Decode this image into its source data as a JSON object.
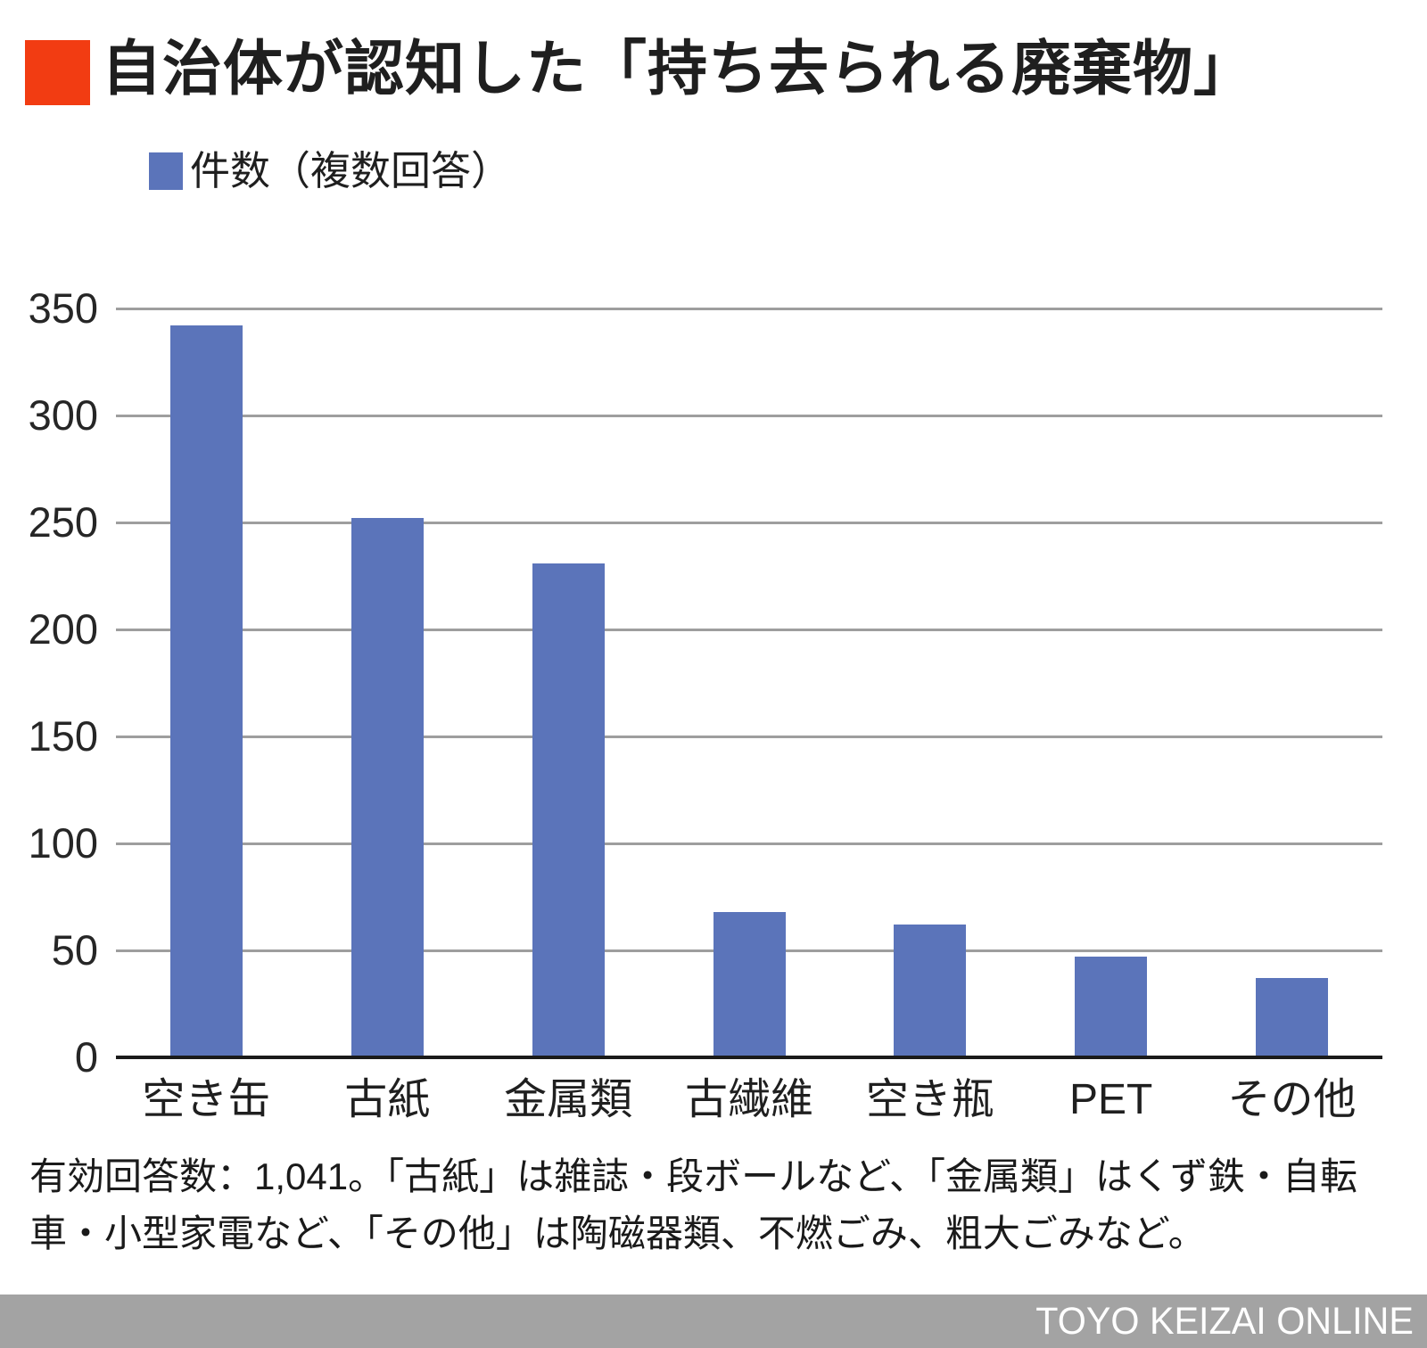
{
  "header": {
    "title": "自治体が認知した「持ち去られる廃棄物」",
    "accent_color": "#f23c12"
  },
  "legend": {
    "label": "件数（複数回答）",
    "swatch_color": "#5b74ba"
  },
  "chart_data": {
    "type": "bar",
    "title": "自治体が認知した「持ち去られる廃棄物」",
    "series_label": "件数（複数回答）",
    "categories": [
      "空き缶",
      "古紙",
      "金属類",
      "古繊維",
      "空き瓶",
      "PET",
      "その他"
    ],
    "values": [
      342,
      252,
      231,
      68,
      62,
      47,
      37
    ],
    "xlabel": "",
    "ylabel": "",
    "ylim": [
      0,
      350
    ],
    "yticks": [
      0,
      50,
      100,
      150,
      200,
      250,
      300,
      350
    ],
    "grid": true,
    "legend_position": "top-left",
    "bar_color": "#5b74ba",
    "gridline_color": "#9e9e9e",
    "axis_line_color": "#1a1a1a"
  },
  "footnote": {
    "lines": [
      "有効回答数：1,041。「古紙」は雑誌・段ボールなど、「金属類」はくず鉄・自転",
      "車・小型家電など、「その他」は陶磁器類、不燃ごみ、粗大ごみなど。"
    ]
  },
  "footer": {
    "brand": "TOYO KEIZAI ONLINE",
    "bar_color": "#a3a3a3"
  }
}
